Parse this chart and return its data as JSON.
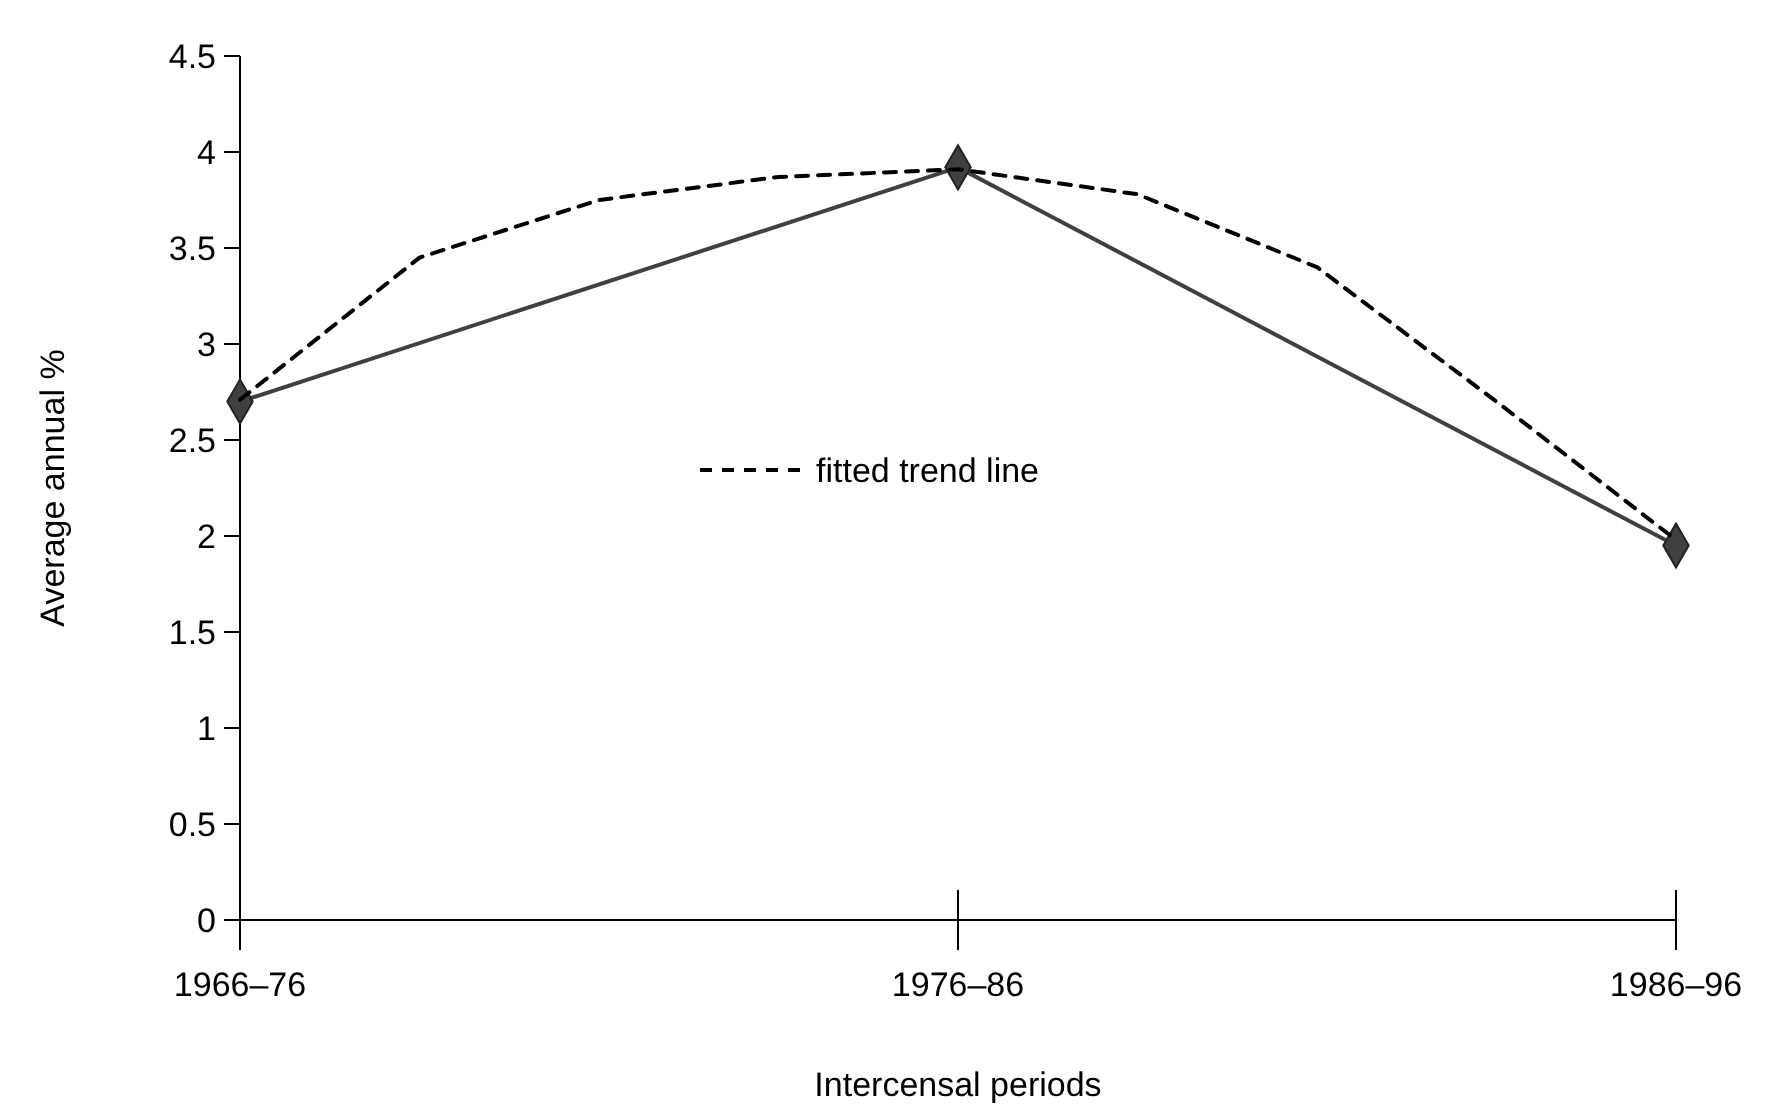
{
  "chart_data": {
    "type": "line",
    "xlabel": "Intercensal periods",
    "ylabel": "Average annual %",
    "categories": [
      "1966–76",
      null,
      null,
      null,
      "1976–86",
      null,
      null,
      null,
      "1986–96"
    ],
    "ylim": [
      0,
      4.5
    ],
    "yticks": [
      0,
      0.5,
      1,
      1.5,
      2,
      2.5,
      3,
      3.5,
      4,
      4.5
    ],
    "grid": false,
    "legend": "center",
    "series": [
      {
        "color": "#404040",
        "values": [
          2.7,
          null,
          null,
          null,
          3.92,
          null,
          null,
          null,
          1.95
        ],
        "marker": "diamond",
        "line_style": "solid"
      },
      {
        "name": "fitted trend line",
        "color": "#000000",
        "values": [
          2.71,
          3.45,
          3.75,
          3.87,
          3.91,
          3.78,
          3.4,
          2.7,
          1.98
        ],
        "marker": "none",
        "line_style": "dashed"
      }
    ]
  }
}
